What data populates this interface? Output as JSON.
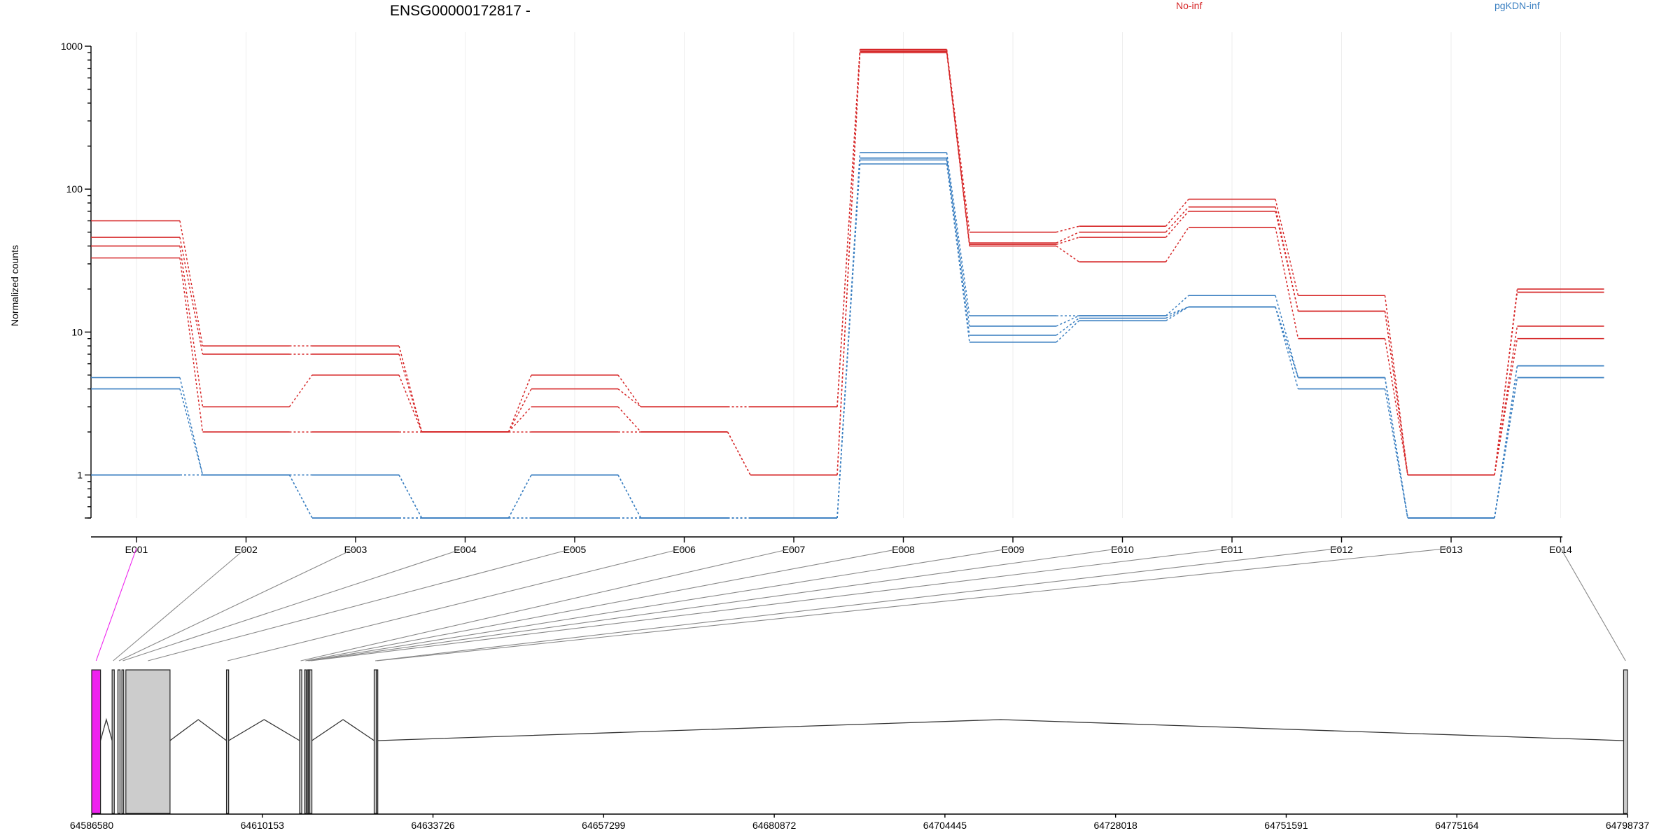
{
  "title": "ENSG00000172817 -",
  "colors": {
    "No-inf": "#d62728",
    "pgKDN-inf": "#3a7fc1",
    "exon_highlight": "#ee22ee",
    "exon_fill": "#cccccc"
  },
  "chart_data": {
    "type": "line",
    "title": "ENSG00000172817 -",
    "ylabel": "Normalized counts",
    "yscale": "log",
    "ylim": [
      0.5,
      1000
    ],
    "y_ticks": [
      "1",
      "10",
      "100",
      "1000"
    ],
    "categories": [
      "E001",
      "E002",
      "E003",
      "E004",
      "E005",
      "E006",
      "E007",
      "E008",
      "E009",
      "E010",
      "E011",
      "E012",
      "E013",
      "E014"
    ],
    "legend": [
      {
        "name": "No-inf",
        "color": "#d62728"
      },
      {
        "name": "pgKDN-inf",
        "color": "#3a7fc1"
      }
    ],
    "series": [
      {
        "group": "No-inf",
        "color": "#d62728",
        "values": [
          60,
          8,
          8,
          2,
          5,
          3,
          3,
          950,
          50,
          55,
          85,
          18,
          1,
          20
        ]
      },
      {
        "group": "No-inf",
        "color": "#d62728",
        "values": [
          46,
          7,
          7,
          2,
          4,
          3,
          3,
          940,
          42,
          50,
          75,
          14,
          1,
          19
        ]
      },
      {
        "group": "No-inf",
        "color": "#d62728",
        "values": [
          40,
          3,
          5,
          2,
          3,
          2,
          1,
          920,
          41,
          46,
          70,
          14,
          1,
          11
        ]
      },
      {
        "group": "No-inf",
        "color": "#d62728",
        "values": [
          33,
          2,
          2,
          2,
          2,
          2,
          1,
          900,
          40,
          31,
          54,
          9,
          1,
          9
        ]
      },
      {
        "group": "pgKDN-inf",
        "color": "#3a7fc1",
        "values": [
          4.8,
          1,
          0.5,
          0.5,
          0.5,
          0.5,
          0.5,
          180,
          13,
          13,
          18,
          4.8,
          0.5,
          5.8
        ]
      },
      {
        "group": "pgKDN-inf",
        "color": "#3a7fc1",
        "values": [
          4,
          1,
          0.5,
          0.5,
          0.5,
          0.5,
          0.5,
          165,
          11,
          13,
          15,
          4.8,
          0.5,
          5.8
        ]
      },
      {
        "group": "pgKDN-inf",
        "color": "#3a7fc1",
        "values": [
          1,
          1,
          1,
          0.5,
          1,
          0.5,
          0.5,
          160,
          9.5,
          12.5,
          15,
          4.8,
          0.5,
          4.8
        ]
      },
      {
        "group": "pgKDN-inf",
        "color": "#3a7fc1",
        "values": [
          1,
          1,
          1,
          0.5,
          1,
          0.5,
          0.5,
          150,
          8.5,
          12,
          15,
          4,
          0.5,
          4.8
        ]
      }
    ],
    "gene_model": {
      "genomic_ticks": [
        "64586580",
        "64610153",
        "64633726",
        "64657299",
        "64680872",
        "64704445",
        "64728018",
        "64751591",
        "64775164",
        "64798737"
      ],
      "range": [
        64586580,
        64798737
      ],
      "exons": [
        {
          "id": "E001",
          "start": 64586580,
          "end": 64587800,
          "highlight": true
        },
        {
          "id": "E002",
          "start": 64589400,
          "end": 64589700
        },
        {
          "id": "E003",
          "start": 64590200,
          "end": 64590500
        },
        {
          "id": "E004",
          "start": 64590750,
          "end": 64591000
        },
        {
          "id": "E005",
          "start": 64591300,
          "end": 64597400
        },
        {
          "id": "E006",
          "start": 64605200,
          "end": 64605500
        },
        {
          "id": "E007",
          "start": 64615300,
          "end": 64615600
        },
        {
          "id": "E008",
          "start": 64616000,
          "end": 64616200
        },
        {
          "id": "E009",
          "start": 64616350,
          "end": 64616500
        },
        {
          "id": "E010",
          "start": 64616500,
          "end": 64616700
        },
        {
          "id": "E011",
          "start": 64616700,
          "end": 64617000
        },
        {
          "id": "E012",
          "start": 64625600,
          "end": 64625900
        },
        {
          "id": "E013",
          "start": 64625900,
          "end": 64626100
        },
        {
          "id": "E014",
          "start": 64798200,
          "end": 64798737
        }
      ]
    }
  }
}
